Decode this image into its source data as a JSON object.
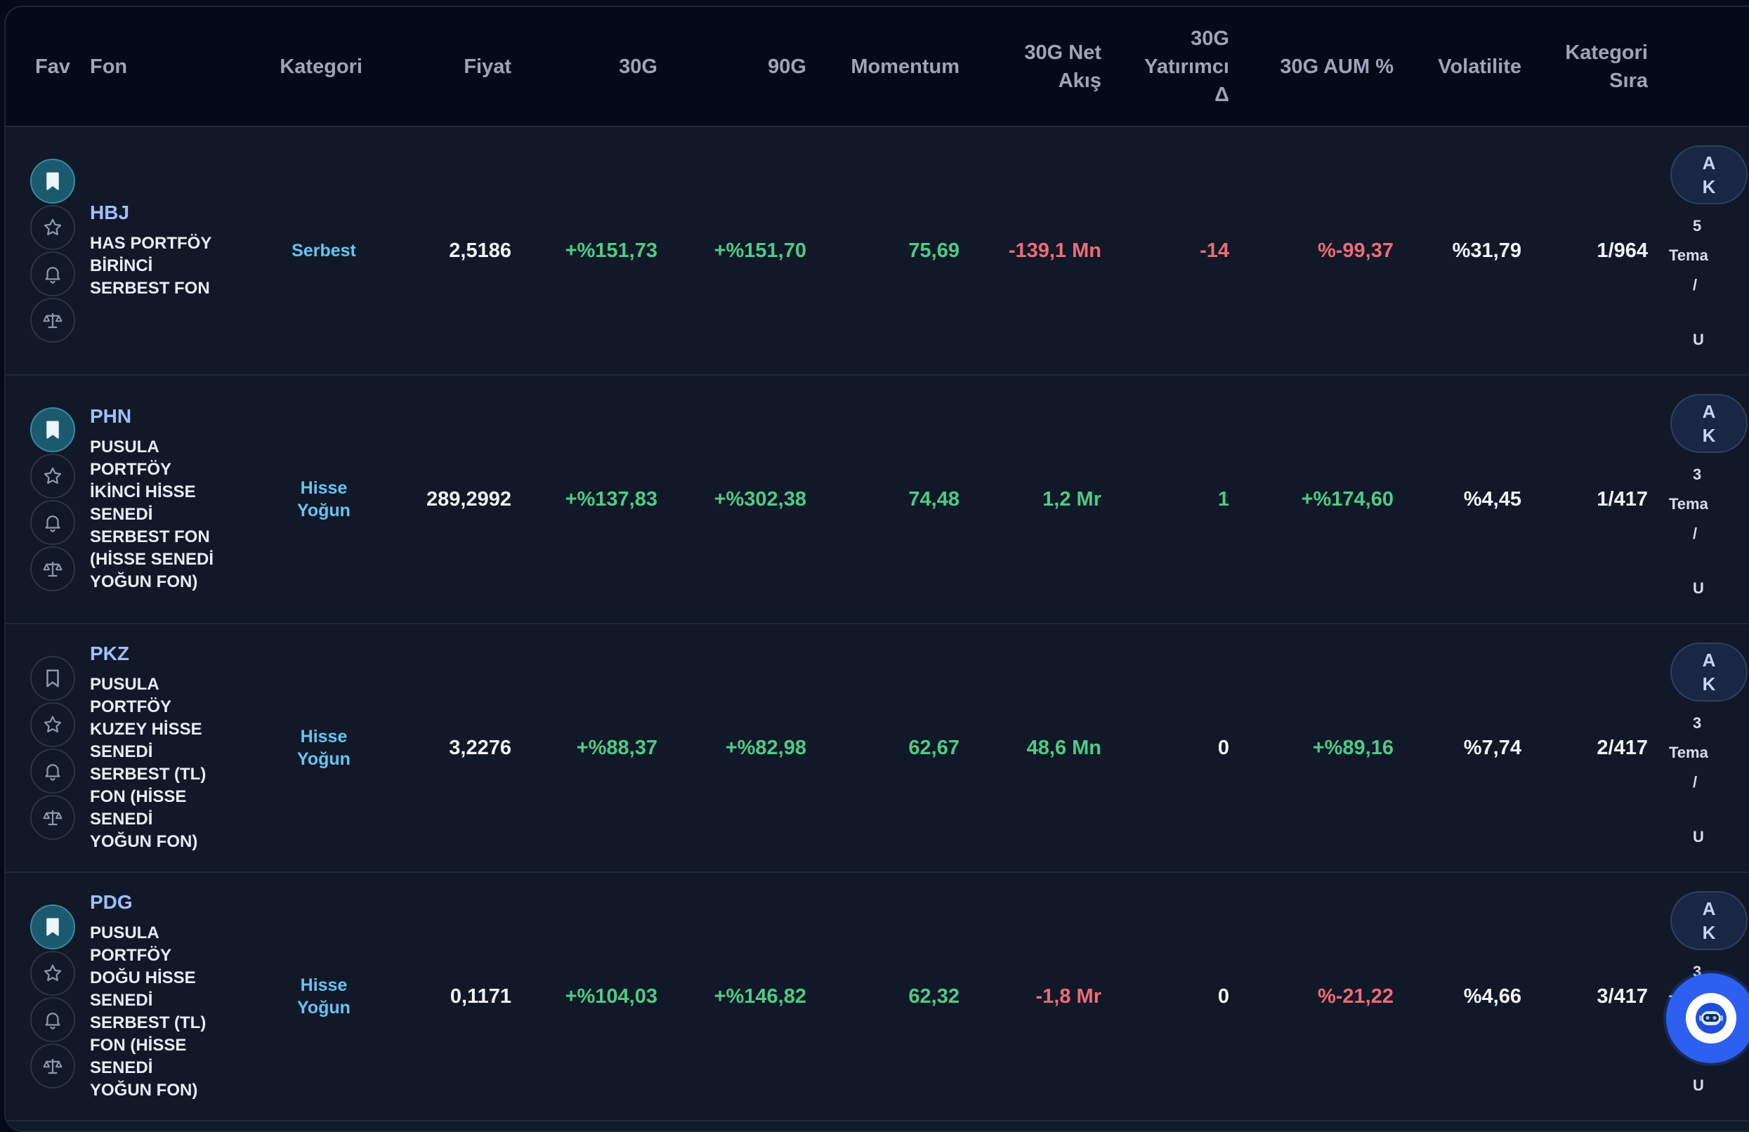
{
  "header": {
    "fav": "Fav",
    "fon": "Fon",
    "kategori": "Kategori",
    "fiyat": "Fiyat",
    "g30": "30G",
    "g90": "90G",
    "momentum": "Momentum",
    "net_akis_1": "30G Net",
    "net_akis_2": "Akış",
    "yatirimci_1": "30G",
    "yatirimci_2": "Yatırımcı",
    "yatirimci_3": "Δ",
    "aum": "30G AUM %",
    "volatilite": "Volatilite",
    "kategori_sira_1": "Kategori",
    "kategori_sira_2": "Sıra"
  },
  "rows": [
    {
      "code": "HBJ",
      "name": "HAS PORTFÖY BİRİNCİ SERBEST FON",
      "category": "Serbest",
      "price": "2,5186",
      "g30": "+%151,73",
      "g90": "+%151,70",
      "momentum": "75,69",
      "net_flow": "-139,1 Mn",
      "investor_delta": "-14",
      "aum_pct": "%-99,37",
      "volatility": "%31,79",
      "rank": "1/964",
      "bookmarked": true,
      "edge_badge": "A\nK",
      "edge_1": "5",
      "edge_2": "Tema",
      "edge_3": "/",
      "edge_4": "U"
    },
    {
      "code": "PHN",
      "name": "PUSULA PORTFÖY İKİNCİ HİSSE SENEDİ SERBEST FON (HİSSE SENEDİ YOĞUN FON)",
      "category": "Hisse Yoğun",
      "price": "289,2992",
      "g30": "+%137,83",
      "g90": "+%302,38",
      "momentum": "74,48",
      "net_flow": "1,2 Mr",
      "investor_delta": "1",
      "aum_pct": "+%174,60",
      "volatility": "%4,45",
      "rank": "1/417",
      "bookmarked": true,
      "edge_badge": "A\nK",
      "edge_1": "3",
      "edge_2": "Tema",
      "edge_3": "/",
      "edge_4": "U"
    },
    {
      "code": "PKZ",
      "name": "PUSULA PORTFÖY KUZEY HİSSE SENEDİ SERBEST (TL) FON (HİSSE SENEDİ YOĞUN FON)",
      "category": "Hisse Yoğun",
      "price": "3,2276",
      "g30": "+%88,37",
      "g90": "+%82,98",
      "momentum": "62,67",
      "net_flow": "48,6 Mn",
      "investor_delta": "0",
      "aum_pct": "+%89,16",
      "volatility": "%7,74",
      "rank": "2/417",
      "bookmarked": false,
      "edge_badge": "A\nK",
      "edge_1": "3",
      "edge_2": "Tema",
      "edge_3": "/",
      "edge_4": "U"
    },
    {
      "code": "PDG",
      "name": "PUSULA PORTFÖY DOĞU HİSSE SENEDİ SERBEST (TL) FON (HİSSE SENEDİ YOĞUN FON)",
      "category": "Hisse Yoğun",
      "price": "0,1171",
      "g30": "+%104,03",
      "g90": "+%146,82",
      "momentum": "62,32",
      "net_flow": "-1,8 Mr",
      "investor_delta": "0",
      "aum_pct": "%-21,22",
      "volatility": "%4,66",
      "rank": "3/417",
      "bookmarked": true,
      "edge_badge": "A\nK",
      "edge_1": "3",
      "edge_2": "Tema",
      "edge_3": "/",
      "edge_4": "U"
    }
  ],
  "colors": {
    "positive": "#4ecb84",
    "negative": "#ef6b78",
    "category": "#67c4f0",
    "code": "#9ec0ff",
    "bookmark_active": "#1b5a6e"
  },
  "icons": {
    "bookmark": "bookmark-icon",
    "star": "star-icon",
    "bell": "bell-icon",
    "compare": "scale-icon",
    "chat": "chat-bot-icon"
  }
}
